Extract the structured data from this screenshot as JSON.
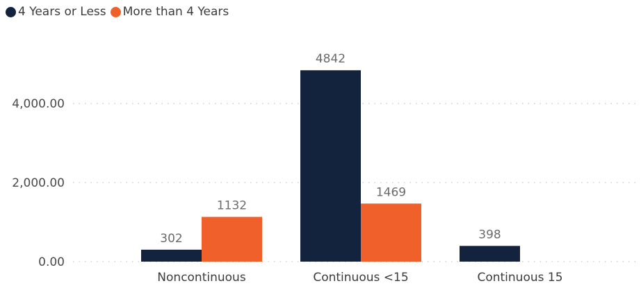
{
  "chart_data": {
    "type": "bar",
    "categories": [
      "Noncontinuous",
      "Continuous <15",
      "Continuous 15"
    ],
    "series": [
      {
        "name": "4 Years or Less",
        "color": "#13233d",
        "values": [
          302,
          4842,
          398
        ]
      },
      {
        "name": "More than 4 Years",
        "color": "#f0602a",
        "values": [
          1132,
          1469,
          null
        ]
      }
    ],
    "y_ticks": [
      "0.00",
      "2,000.00",
      "4,000.00"
    ],
    "y_tick_values": [
      0,
      2000,
      4000
    ],
    "ylim": [
      0,
      5200
    ],
    "grid": true,
    "legend_position": "top-left",
    "xlabel": "",
    "ylabel": ""
  }
}
